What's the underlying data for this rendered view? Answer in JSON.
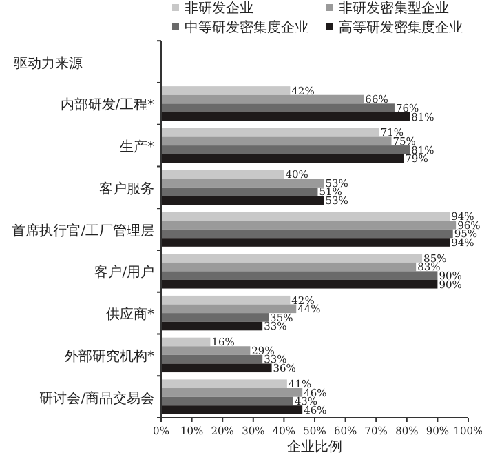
{
  "chart_data": {
    "type": "bar",
    "orientation": "horizontal",
    "ylabel": "驱动力来源",
    "xlabel": "企业比例",
    "categories": [
      "内部研发/工程*",
      "生产*",
      "客户服务",
      "首席执行官/工厂管理层",
      "客户/用户",
      "供应商*",
      "外部研究机构*",
      "研讨会/商品交易会"
    ],
    "series": [
      {
        "name": "非研发企业",
        "color": "#c8c8c8",
        "values": [
          42,
          71,
          40,
          94,
          85,
          42,
          16,
          41
        ],
        "value_labels": [
          "42%",
          "71%",
          "40%",
          "94%",
          "85%",
          "42%",
          "16%",
          "41%"
        ]
      },
      {
        "name": "非研发密集型企业",
        "color": "#9a9a9a",
        "values": [
          66,
          75,
          53,
          96,
          83,
          44,
          29,
          46
        ],
        "value_labels": [
          "66%",
          "75%",
          "53%",
          "96%",
          "83%",
          "44%",
          "29%",
          "46%"
        ]
      },
      {
        "name": "中等研发密集度企业",
        "color": "#6a6a6a",
        "values": [
          76,
          81,
          51,
          95,
          90,
          35,
          33,
          43
        ],
        "value_labels": [
          "76%",
          "81%",
          "51%",
          "95%",
          "90%",
          "35%",
          "33%",
          "43%"
        ]
      },
      {
        "name": "高等研发密集度企业",
        "color": "#1e1a1a",
        "values": [
          81,
          79,
          53,
          94,
          90,
          33,
          36,
          46
        ],
        "value_labels": [
          "81%",
          "79%",
          "53%",
          "94%",
          "90%",
          "33%",
          "36%",
          "46%"
        ]
      }
    ],
    "xlim": [
      0,
      100
    ],
    "xticks": [
      {
        "value": 0,
        "label": "0%"
      },
      {
        "value": 10,
        "label": "10%"
      },
      {
        "value": 20,
        "label": "20%"
      },
      {
        "value": 30,
        "label": "30%"
      },
      {
        "value": 40,
        "label": "40%"
      },
      {
        "value": 50,
        "label": "50%"
      },
      {
        "value": 60,
        "label": "60%"
      },
      {
        "value": 70,
        "label": "70%"
      },
      {
        "value": 80,
        "label": "80%"
      },
      {
        "value": 90,
        "label": "90%"
      },
      {
        "value": 100,
        "label": "100%"
      }
    ],
    "legend": "top",
    "grid": false
  }
}
